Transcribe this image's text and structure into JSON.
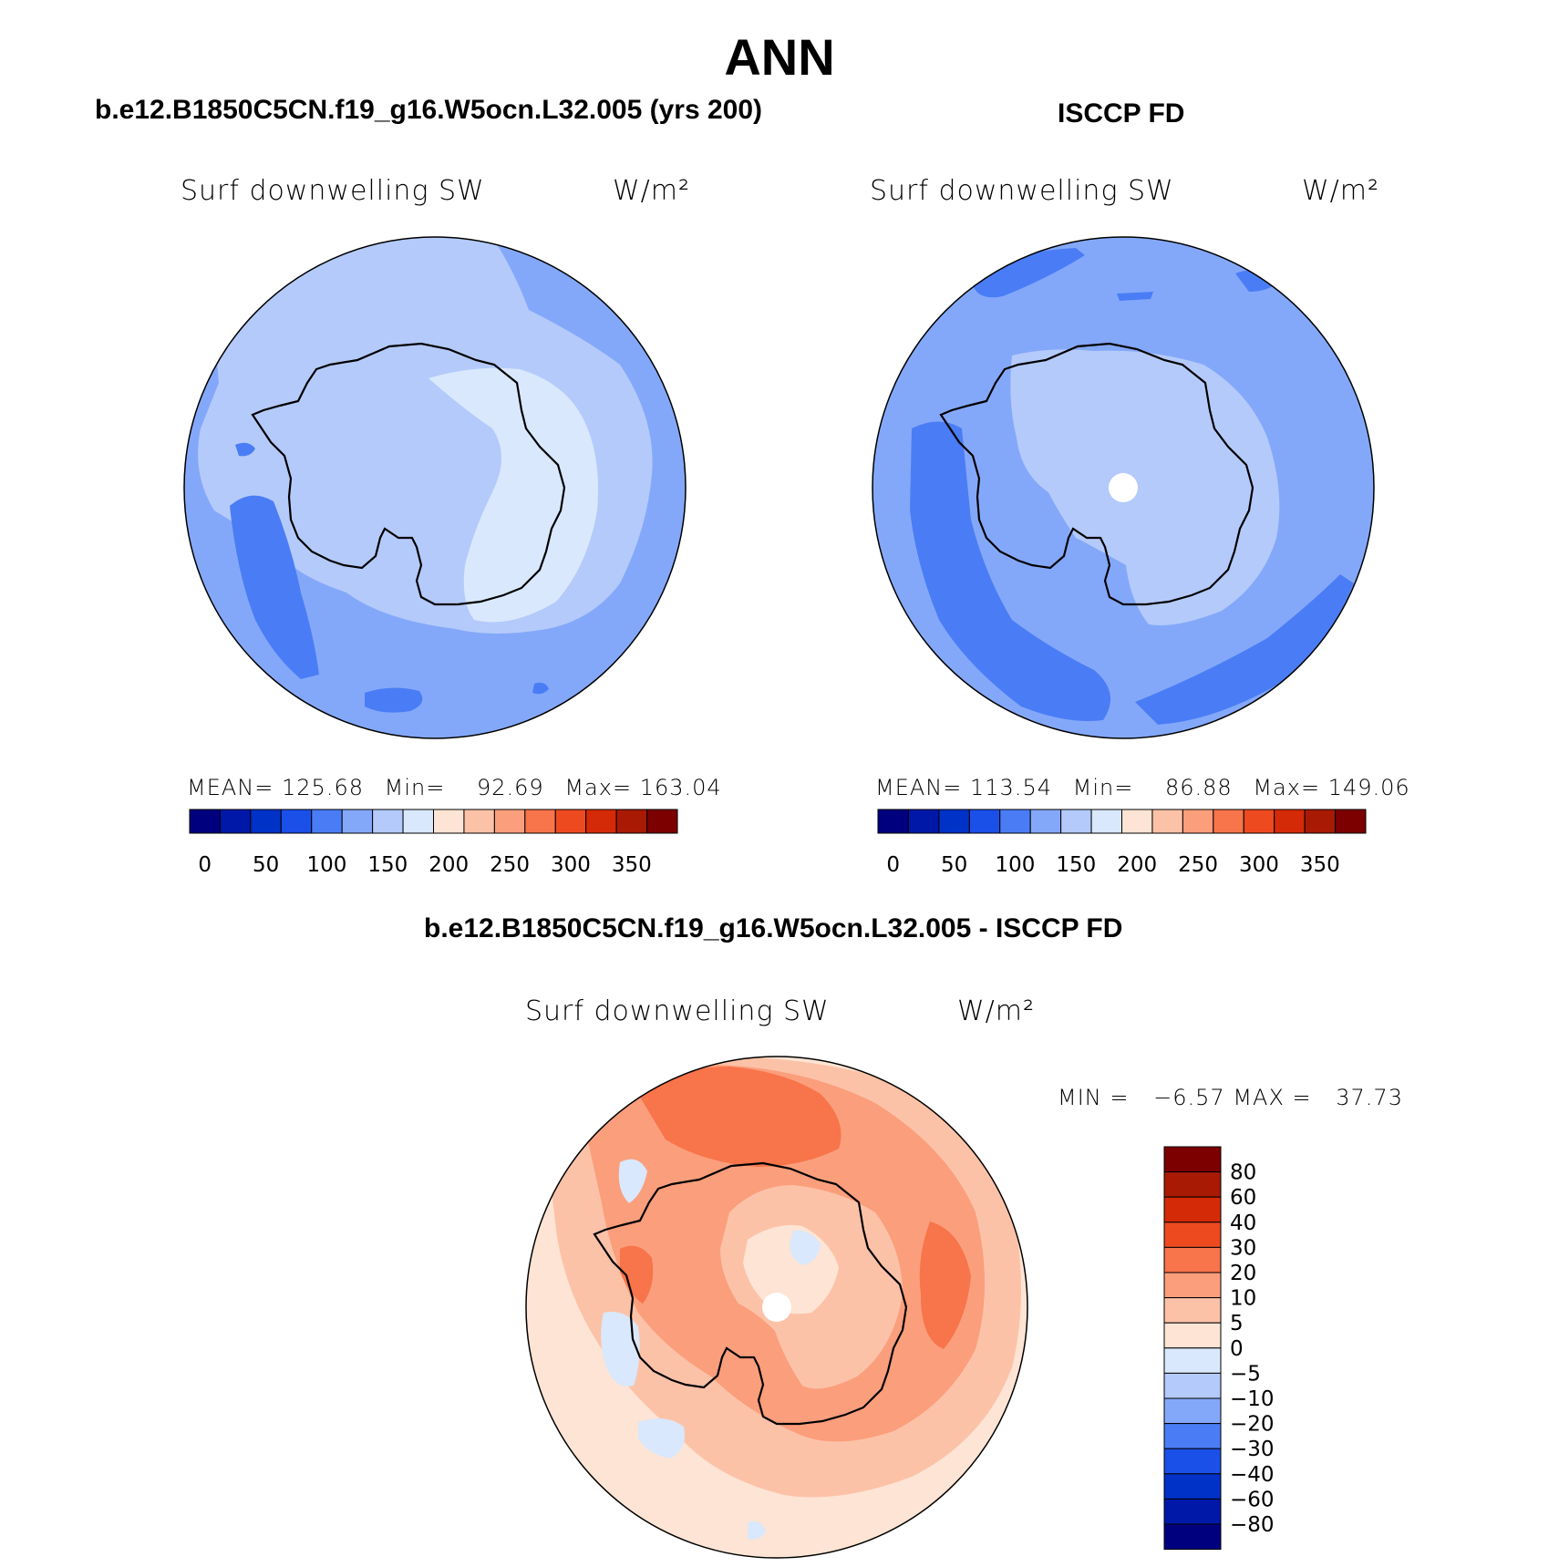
{
  "title": "ANN",
  "panels": [
    {
      "case_title": "b.e12.B1850C5CN.f19_g16.W5ocn.L32.005 (yrs 200)",
      "variable": "Surf downwelling SW",
      "units": "W/m²",
      "mean_label": "MEAN=",
      "mean": "125.68",
      "min_label": "Min=",
      "min": "92.69",
      "max_label": "Max=",
      "max": "163.04"
    },
    {
      "case_title": "ISCCP FD",
      "variable": "Surf downwelling SW",
      "units": "W/m²",
      "mean_label": "MEAN=",
      "mean": "113.54",
      "min_label": "Min=",
      "min": "86.88",
      "max_label": "Max=",
      "max": "149.06"
    },
    {
      "case_title": "b.e12.B1850C5CN.f19_g16.W5ocn.L32.005 - ISCCP FD",
      "variable": "Surf downwelling SW",
      "units": "W/m²",
      "min_label": "MIN =",
      "min": "−6.57",
      "max_label": "MAX =",
      "max": "37.73"
    }
  ],
  "abs_colorbar": {
    "colors": [
      "#00007f",
      "#0018a8",
      "#0032c8",
      "#1a50e8",
      "#4a7df5",
      "#84a8f9",
      "#b4cafb",
      "#d9e8fc",
      "#fde4d4",
      "#fcc2a8",
      "#fb9e7c",
      "#f8744a",
      "#ee4a20",
      "#d52a08",
      "#a81a04",
      "#7c0000"
    ],
    "tick_labels": [
      "0",
      "50",
      "100",
      "150",
      "200",
      "250",
      "300",
      "350"
    ]
  },
  "diff_colorbar": {
    "colors": [
      "#00007f",
      "#0018a8",
      "#0032c8",
      "#1a50e8",
      "#4a7df5",
      "#84a8f9",
      "#b4cafb",
      "#d9e8fc",
      "#fde4d4",
      "#fcc2a8",
      "#fb9e7c",
      "#f8744a",
      "#ee4a20",
      "#d52a08",
      "#a81a04",
      "#7c0000"
    ],
    "tick_labels": [
      "80",
      "60",
      "40",
      "30",
      "20",
      "10",
      "5",
      "0",
      "−5",
      "−10",
      "−20",
      "−30",
      "−40",
      "−60",
      "−80"
    ]
  }
}
